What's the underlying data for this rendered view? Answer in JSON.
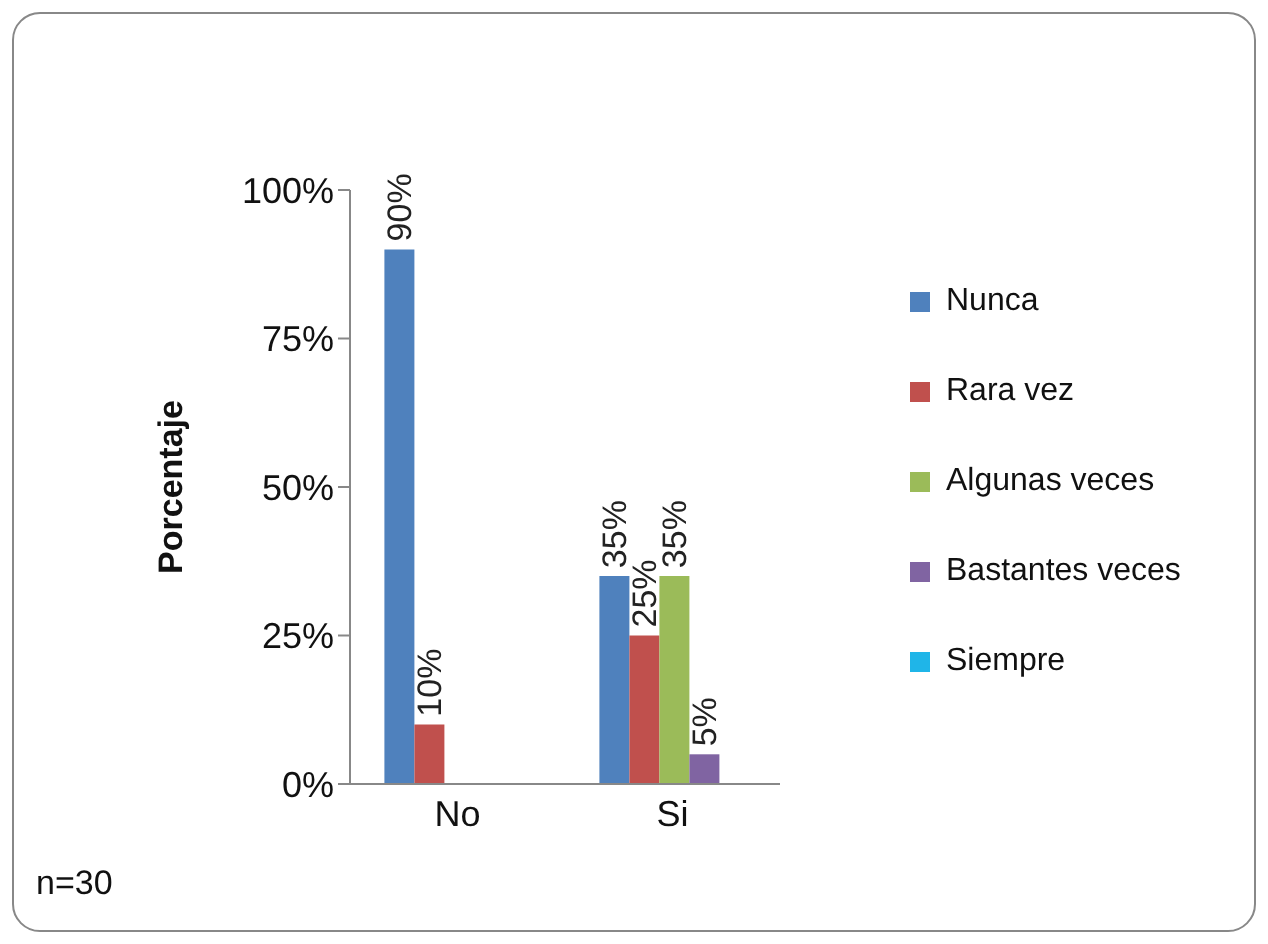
{
  "chart_data": {
    "type": "bar",
    "ylabel": "Porcentaje",
    "categories": [
      "No",
      "Si"
    ],
    "series": [
      {
        "name": "Nunca",
        "color": "#4f81bd",
        "values": [
          90,
          35
        ],
        "value_labels": [
          "90%",
          "35%"
        ]
      },
      {
        "name": "Rara vez",
        "color": "#c0504d",
        "values": [
          10,
          25
        ],
        "value_labels": [
          "10%",
          "25%"
        ]
      },
      {
        "name": "Algunas veces",
        "color": "#9bbb59",
        "values": [
          0,
          35
        ],
        "value_labels": [
          null,
          "35%"
        ]
      },
      {
        "name": "Bastantes veces",
        "color": "#8064a2",
        "values": [
          0,
          5
        ],
        "value_labels": [
          null,
          "5%"
        ]
      },
      {
        "name": "Siempre",
        "color": "#1fb5e8",
        "values": [
          0,
          0
        ],
        "value_labels": [
          null,
          null
        ]
      }
    ],
    "ylim": [
      0,
      100
    ],
    "yticks": [
      {
        "value": 0,
        "label": "0%"
      },
      {
        "value": 25,
        "label": "25%"
      },
      {
        "value": 50,
        "label": "50%"
      },
      {
        "value": 75,
        "label": "75%"
      },
      {
        "value": 100,
        "label": "100%"
      }
    ],
    "legend": "right",
    "annotations": [
      "n=30"
    ]
  }
}
